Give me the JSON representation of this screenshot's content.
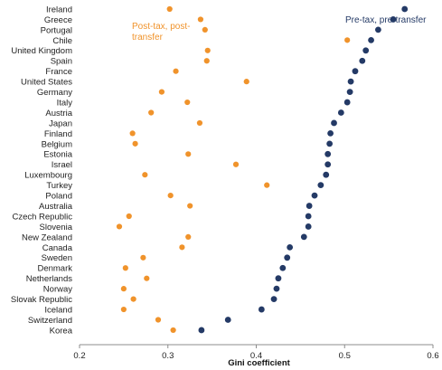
{
  "chart_data": {
    "type": "scatter",
    "orientation": "horizontal-dot",
    "title": "",
    "xlabel": "Gini coefficient",
    "ylabel": "",
    "xlim": [
      0.2,
      0.6
    ],
    "xticks": [
      "0.2",
      "0.3",
      "0.4",
      "0.5",
      "0.6"
    ],
    "grid": false,
    "categories": [
      "Ireland",
      "Greece",
      "Portugal",
      "Chile",
      "United Kingdom",
      "Spain",
      "France",
      "United States",
      "Germany",
      "Italy",
      "Austria",
      "Japan",
      "Finland",
      "Belgium",
      "Estonia",
      "Israel",
      "Luxembourg",
      "Turkey",
      "Poland",
      "Australia",
      "Czech Republic",
      "Slovenia",
      "New Zealand",
      "Canada",
      "Sweden",
      "Denmark",
      "Netherlands",
      "Norway",
      "Slovak Republic",
      "Iceland",
      "Switzerland",
      "Korea"
    ],
    "series": [
      {
        "name": "Post-tax, post-transfer",
        "color": "#f0932b",
        "label_lines": [
          "Post-tax, post-",
          "transfer"
        ],
        "values": [
          0.302,
          0.337,
          0.342,
          0.503,
          0.345,
          0.344,
          0.309,
          0.389,
          0.293,
          0.322,
          0.281,
          0.336,
          0.26,
          0.263,
          0.323,
          0.377,
          0.274,
          0.412,
          0.303,
          0.325,
          0.256,
          0.245,
          0.323,
          0.316,
          0.272,
          0.252,
          0.276,
          0.25,
          0.261,
          0.25,
          0.289,
          0.306
        ]
      },
      {
        "name": "Pre-tax, pre-transfer",
        "color": "#243a66",
        "label_lines": [
          "Pre-tax, pre-transfer"
        ],
        "values": [
          0.568,
          0.555,
          0.538,
          0.53,
          0.524,
          0.52,
          0.512,
          0.507,
          0.506,
          0.503,
          0.496,
          0.488,
          0.484,
          0.483,
          0.481,
          0.481,
          0.479,
          0.473,
          0.466,
          0.46,
          0.459,
          0.459,
          0.454,
          0.438,
          0.435,
          0.43,
          0.425,
          0.423,
          0.42,
          0.406,
          0.368,
          0.338
        ]
      }
    ]
  }
}
